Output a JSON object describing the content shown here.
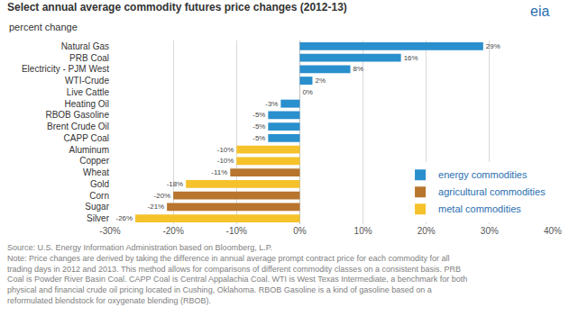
{
  "chart_data": {
    "type": "bar",
    "orientation": "horizontal",
    "title": "Select annual average commodity futures price changes (2012-13)",
    "subtitle": "percent change",
    "categories": [
      "Natural Gas",
      "PRB Coal",
      "Electricity - PJM West",
      "WTI-Crude",
      "Live Cattle",
      "Heating Oil",
      "RBOB Gasoline",
      "Brent Crude Oil",
      "CAPP Coal",
      "Aluminum",
      "Copper",
      "Wheat",
      "Gold",
      "Corn",
      "Sugar",
      "Silver"
    ],
    "series": [
      {
        "name": "energy commodities",
        "color": "#2a8fcd",
        "values": [
          29,
          16,
          8,
          2,
          null,
          -3,
          -5,
          -5,
          -5,
          null,
          null,
          null,
          null,
          null,
          null,
          null
        ],
        "value_labels": [
          "29%",
          "16%",
          "8%",
          "2%",
          null,
          "-3%",
          "-5%",
          "-5%",
          "-5%",
          null,
          null,
          null,
          null,
          null,
          null,
          null
        ]
      },
      {
        "name": "agricultural commodities",
        "color": "#b8752e",
        "values": [
          null,
          null,
          null,
          null,
          0,
          null,
          null,
          null,
          null,
          null,
          null,
          -11,
          null,
          -20,
          -21,
          null
        ],
        "value_labels": [
          null,
          null,
          null,
          null,
          "0%",
          null,
          null,
          null,
          null,
          null,
          null,
          "-11%",
          null,
          "-20%",
          "-21%",
          null
        ]
      },
      {
        "name": "metal commodities",
        "color": "#f5c22b",
        "values": [
          null,
          null,
          null,
          null,
          null,
          null,
          null,
          null,
          null,
          -10,
          -10,
          null,
          -18,
          null,
          null,
          -26
        ],
        "value_labels": [
          null,
          null,
          null,
          null,
          null,
          null,
          null,
          null,
          null,
          "-10%",
          "-10%",
          null,
          "-18%",
          null,
          null,
          "-26%"
        ]
      }
    ],
    "xlim": [
      -30,
      40
    ],
    "xticks": [
      {
        "value": -30,
        "label": "-30%"
      },
      {
        "value": -20,
        "label": "-20%"
      },
      {
        "value": -10,
        "label": "-10%"
      },
      {
        "value": 0,
        "label": "0%"
      },
      {
        "value": 10,
        "label": "10%"
      },
      {
        "value": 20,
        "label": "20%"
      },
      {
        "value": 30,
        "label": "30%"
      },
      {
        "value": 40,
        "label": "40%"
      }
    ],
    "grid": true,
    "data_labels": true,
    "stacked": false,
    "legend": "lower right",
    "annotations": [
      "eia",
      "Source: U.S. Energy Information Administration based on Bloomberg, L.P.",
      "Note: Price changes are derived by taking the difference in annual average prompt contract price for each commodity for all",
      "trading days in 2012 and 2013. This method allows for comparisons of different commodity classes on a consistent basis. PRB",
      "Coal is Powder River Basin Coal. CAPP Coal is Central Appalachia Coal. WTI is West Texas Intermediate, a benchmark for both",
      "physical and financial crude oil pricing located in Cushing, Oklahoma. RBOB Gasoline is a kind of gasoline based on a",
      "reformulated blendstock for oxygenate blending (RBOB)."
    ]
  }
}
